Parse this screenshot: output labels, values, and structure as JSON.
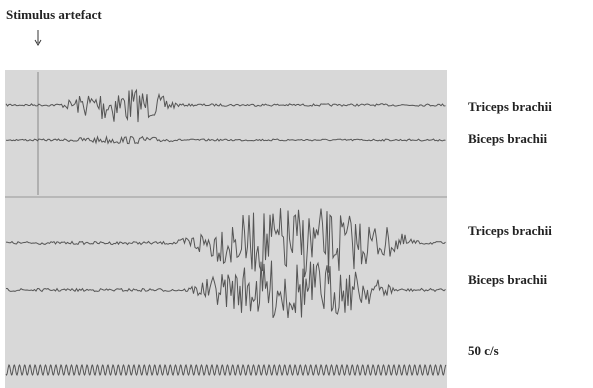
{
  "annotation": "Stimulus artefact",
  "traces": [
    {
      "label": "Triceps brachii"
    },
    {
      "label": "Biceps brachii"
    },
    {
      "label": "Triceps brachii"
    },
    {
      "label": "Biceps brachii"
    }
  ],
  "timebase": "50 c/s"
}
